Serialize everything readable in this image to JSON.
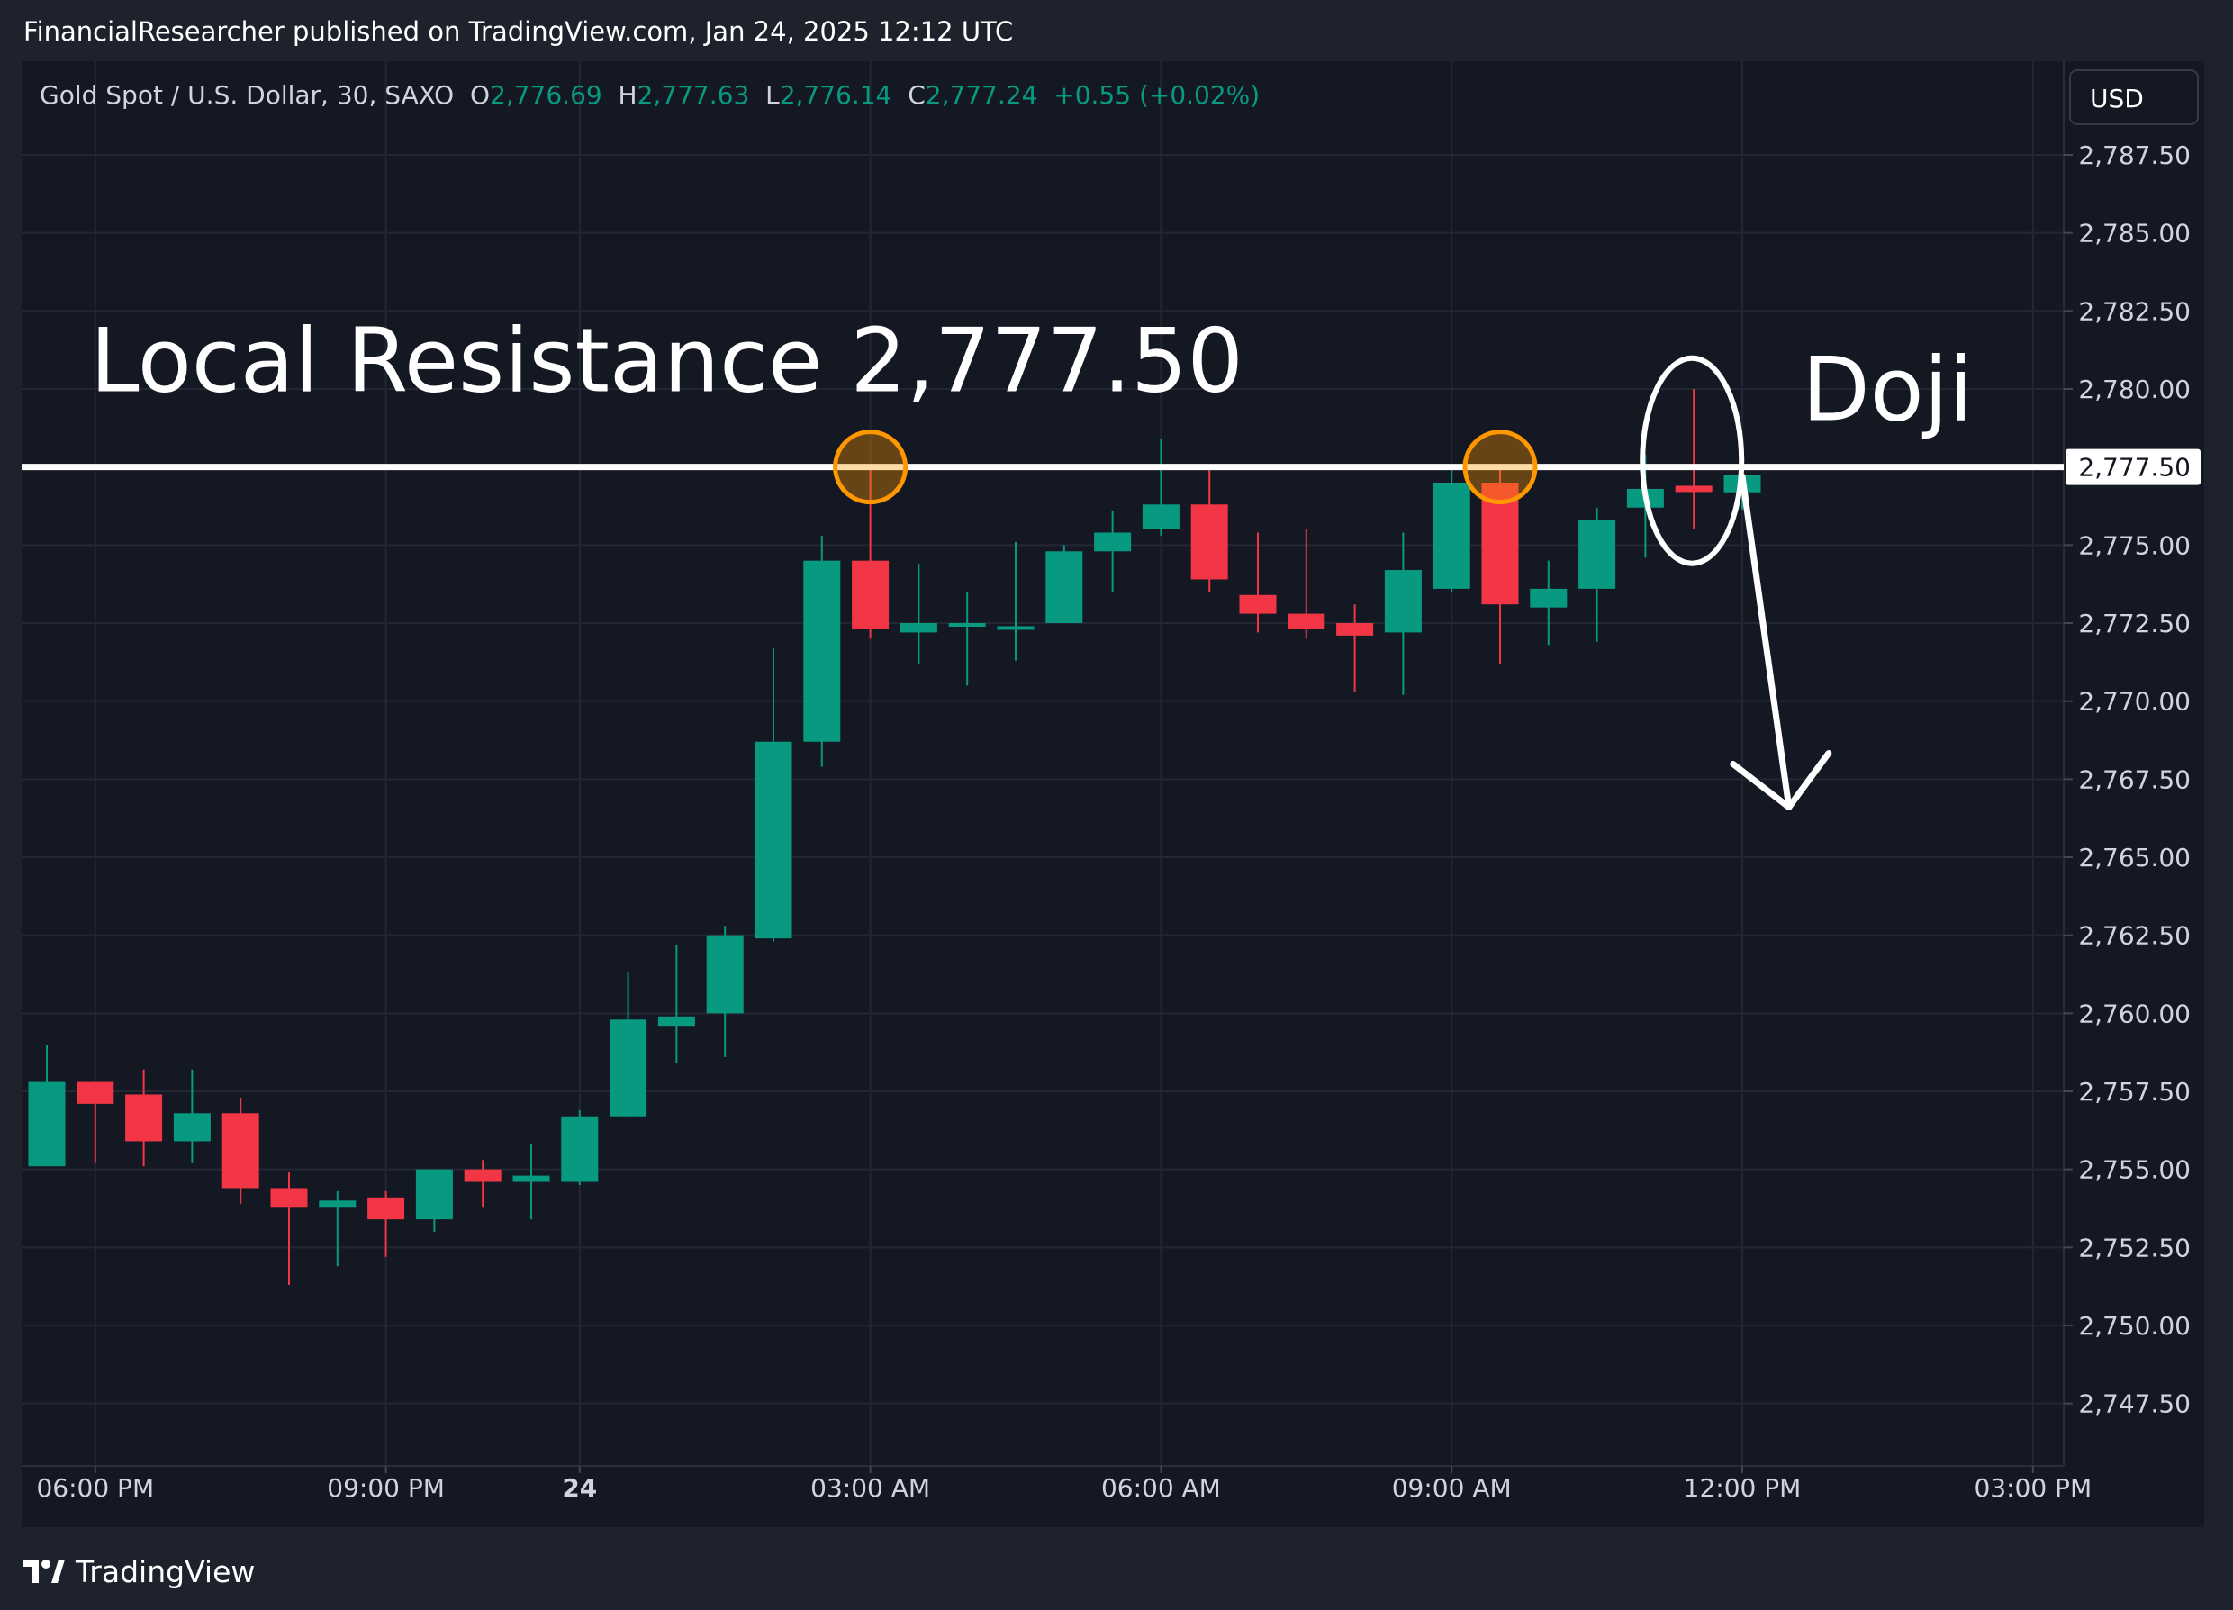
{
  "header": {
    "attribution": "FinancialResearcher published on TradingView.com, Jan 24, 2025 12:12 UTC"
  },
  "colors": {
    "up": "#089981",
    "down": "#f23645",
    "grid": "#232734",
    "axis_text": "#d1d4dc",
    "marker": "#ff9800",
    "annotation": "#ffffff"
  },
  "chart_data": {
    "type": "candlestick",
    "symbol_line": {
      "name": "Gold Spot / U.S. Dollar, 30, SAXO",
      "o_label": "O",
      "o_value": "2,776.69",
      "h_label": "H",
      "h_value": "2,777.63",
      "l_label": "L",
      "l_value": "2,776.14",
      "c_label": "C",
      "c_value": "2,777.24",
      "change": "+0.55 (+0.02%)"
    },
    "currency": "USD",
    "ylim": [
      2745.5,
      2790.5
    ],
    "y_ticks": [
      2787.5,
      2785.0,
      2782.5,
      2780.0,
      2777.5,
      2775.0,
      2772.5,
      2770.0,
      2767.5,
      2765.0,
      2762.5,
      2760.0,
      2757.5,
      2755.0,
      2752.5,
      2750.0,
      2747.5
    ],
    "y_tick_labels": [
      "2,787.50",
      "2,785.00",
      "2,782.50",
      "2,780.00",
      "2,777.50",
      "2,775.00",
      "2,772.50",
      "2,770.00",
      "2,767.50",
      "2,765.00",
      "2,762.50",
      "2,760.00",
      "2,757.50",
      "2,755.00",
      "2,752.50",
      "2,750.00",
      "2,747.50"
    ],
    "x_ticks": [
      {
        "index": 1,
        "label": "06:00 PM",
        "bold": false
      },
      {
        "index": 7,
        "label": "09:00 PM",
        "bold": false
      },
      {
        "index": 11,
        "label": "24",
        "bold": true
      },
      {
        "index": 17,
        "label": "03:00 AM",
        "bold": false
      },
      {
        "index": 23,
        "label": "06:00 AM",
        "bold": false
      },
      {
        "index": 29,
        "label": "09:00 AM",
        "bold": false
      },
      {
        "index": 35,
        "label": "12:00 PM",
        "bold": false
      },
      {
        "index": 41,
        "label": "03:00 PM",
        "bold": false
      }
    ],
    "x_slots": 43,
    "candles": [
      {
        "o": 2755.1,
        "h": 2759.0,
        "l": 2755.1,
        "c": 2757.8
      },
      {
        "o": 2757.8,
        "h": 2757.8,
        "l": 2755.2,
        "c": 2757.1
      },
      {
        "o": 2757.4,
        "h": 2758.2,
        "l": 2755.1,
        "c": 2755.9
      },
      {
        "o": 2755.9,
        "h": 2758.2,
        "l": 2755.2,
        "c": 2756.8
      },
      {
        "o": 2756.8,
        "h": 2757.3,
        "l": 2753.9,
        "c": 2754.4
      },
      {
        "o": 2754.4,
        "h": 2754.9,
        "l": 2751.3,
        "c": 2753.8
      },
      {
        "o": 2753.8,
        "h": 2754.3,
        "l": 2751.9,
        "c": 2754.0
      },
      {
        "o": 2754.1,
        "h": 2754.3,
        "l": 2752.2,
        "c": 2753.4
      },
      {
        "o": 2753.4,
        "h": 2755.0,
        "l": 2753.0,
        "c": 2755.0
      },
      {
        "o": 2755.0,
        "h": 2755.3,
        "l": 2753.8,
        "c": 2754.6
      },
      {
        "o": 2754.6,
        "h": 2755.8,
        "l": 2753.4,
        "c": 2754.8
      },
      {
        "o": 2754.6,
        "h": 2756.9,
        "l": 2754.5,
        "c": 2756.7
      },
      {
        "o": 2756.7,
        "h": 2761.3,
        "l": 2756.7,
        "c": 2759.8
      },
      {
        "o": 2759.6,
        "h": 2762.2,
        "l": 2758.4,
        "c": 2759.9
      },
      {
        "o": 2760.0,
        "h": 2762.8,
        "l": 2758.6,
        "c": 2762.5
      },
      {
        "o": 2762.4,
        "h": 2771.7,
        "l": 2762.3,
        "c": 2768.7
      },
      {
        "o": 2768.7,
        "h": 2775.3,
        "l": 2767.9,
        "c": 2774.5
      },
      {
        "o": 2774.5,
        "h": 2777.6,
        "l": 2772.0,
        "c": 2772.3
      },
      {
        "o": 2772.2,
        "h": 2774.4,
        "l": 2771.2,
        "c": 2772.5
      },
      {
        "o": 2772.5,
        "h": 2773.5,
        "l": 2770.5,
        "c": 2772.5
      },
      {
        "o": 2772.4,
        "h": 2775.1,
        "l": 2771.3,
        "c": 2772.4
      },
      {
        "o": 2772.5,
        "h": 2775.0,
        "l": 2772.5,
        "c": 2774.8
      },
      {
        "o": 2774.8,
        "h": 2776.1,
        "l": 2773.5,
        "c": 2775.4
      },
      {
        "o": 2775.5,
        "h": 2778.4,
        "l": 2775.3,
        "c": 2776.3
      },
      {
        "o": 2776.3,
        "h": 2777.4,
        "l": 2773.5,
        "c": 2773.9
      },
      {
        "o": 2773.4,
        "h": 2775.4,
        "l": 2772.2,
        "c": 2772.8
      },
      {
        "o": 2772.8,
        "h": 2775.5,
        "l": 2772.0,
        "c": 2772.3
      },
      {
        "o": 2772.5,
        "h": 2773.1,
        "l": 2770.3,
        "c": 2772.1
      },
      {
        "o": 2772.2,
        "h": 2775.4,
        "l": 2770.2,
        "c": 2774.2
      },
      {
        "o": 2773.6,
        "h": 2777.4,
        "l": 2773.5,
        "c": 2777.0
      },
      {
        "o": 2777.0,
        "h": 2777.6,
        "l": 2771.2,
        "c": 2773.1
      },
      {
        "o": 2773.0,
        "h": 2774.5,
        "l": 2771.8,
        "c": 2773.6
      },
      {
        "o": 2773.6,
        "h": 2776.2,
        "l": 2771.9,
        "c": 2775.8
      },
      {
        "o": 2776.2,
        "h": 2777.9,
        "l": 2774.6,
        "c": 2776.8
      },
      {
        "o": 2776.9,
        "h": 2780.0,
        "l": 2775.5,
        "c": 2776.7
      },
      {
        "o": 2776.69,
        "h": 2777.63,
        "l": 2776.14,
        "c": 2777.24
      }
    ],
    "resistance": {
      "value": 2777.5,
      "value_label": "2,777.50",
      "text": "Local Resistance 2,777.50"
    },
    "highlight_candles": [
      17,
      30
    ],
    "doji": {
      "index": 34,
      "label": "Doji"
    },
    "arrow": {
      "from_index": 35,
      "from_value": 2777.2,
      "to_index": 36,
      "to_value": 2766.6
    }
  }
}
